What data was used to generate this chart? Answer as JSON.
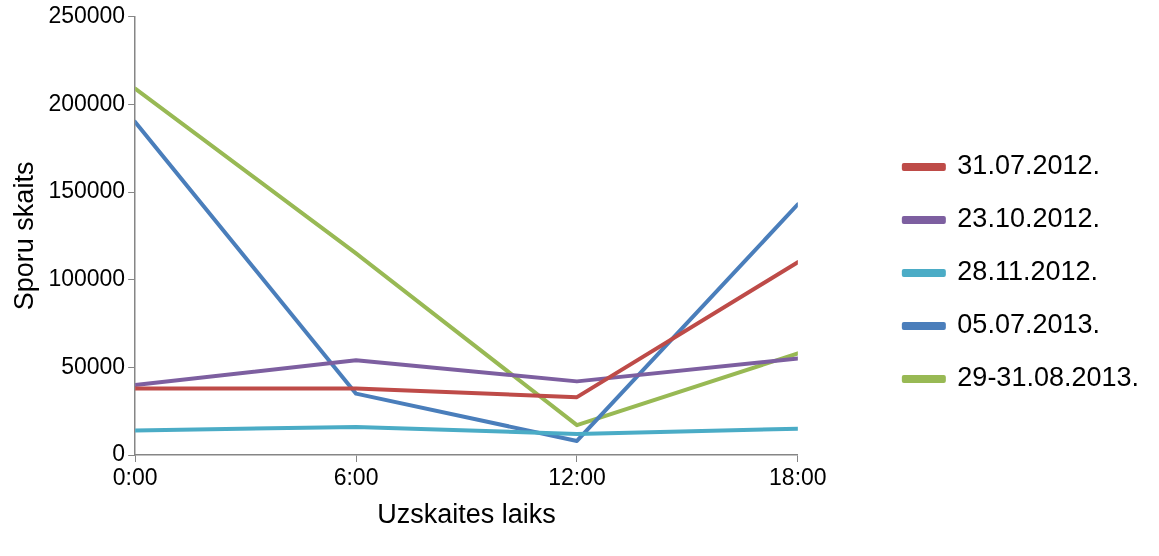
{
  "chart_data": {
    "type": "line",
    "xlabel": "Uzskaites laiks",
    "ylabel": "Sporu skaits",
    "x": [
      0,
      6,
      12,
      18
    ],
    "xlim": [
      0,
      18
    ],
    "xticks": [
      {
        "value": 0,
        "label": "0:00"
      },
      {
        "value": 6,
        "label": "6:00"
      },
      {
        "value": 12,
        "label": "12:00"
      },
      {
        "value": 18,
        "label": "18:00"
      }
    ],
    "ylim": [
      0,
      250000
    ],
    "yticks": [
      0,
      50000,
      100000,
      150000,
      200000,
      250000
    ],
    "grid": false,
    "legend": "right",
    "marker": "none",
    "line_style": "solid",
    "series": [
      {
        "name": "31.07.2012.",
        "color": "#be4b48",
        "values": [
          38000,
          38000,
          33000,
          110000
        ]
      },
      {
        "name": "23.10.2012.",
        "color": "#7d5fa0",
        "values": [
          40000,
          54000,
          42000,
          55000
        ]
      },
      {
        "name": "28.11.2012.",
        "color": "#4bacc6",
        "values": [
          14000,
          16000,
          12000,
          15000
        ]
      },
      {
        "name": "05.07.2013.",
        "color": "#4a7ebb",
        "values": [
          190000,
          35000,
          8000,
          143000
        ]
      },
      {
        "name": "29-31.08.2013.",
        "color": "#98b954",
        "values": [
          209000,
          115000,
          17000,
          58000
        ]
      }
    ]
  }
}
